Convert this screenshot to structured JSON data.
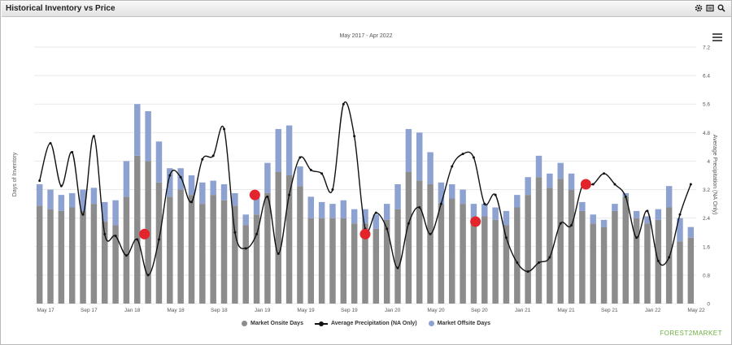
{
  "header": {
    "title": "Historical Inventory vs Price"
  },
  "icons": {
    "settings": "gear-icon",
    "export": "export-icon",
    "zoom": "magnifier-icon",
    "menu": "hamburger-menu-icon"
  },
  "brand": "FOREST2MARKET",
  "colors": {
    "onsite": "#8c8c8c",
    "offsite": "#8ea2d2",
    "line": "#111111",
    "marker": "#e3242b",
    "grid": "#e9e9e9"
  },
  "chart_data": {
    "type": "bar",
    "title": "May 2017 - Apr 2022",
    "ylabel": "Days of Inventory",
    "y2label": "Average Precipitation (NA Only)",
    "ylim": [
      0,
      7.2
    ],
    "y_ticks": [
      "0",
      "0.8",
      "1.6",
      "2.4",
      "3.2",
      "4",
      "4.8",
      "5.6",
      "6.4",
      "7.2"
    ],
    "x_tick_labels": [
      "May 17",
      "Sep 17",
      "Jan 18",
      "May 18",
      "Sep 18",
      "Jan 19",
      "May 19",
      "Sep 19",
      "Jan 20",
      "May 20",
      "Sep 20",
      "Jan 21",
      "May 21",
      "Sep 21",
      "Jan 22",
      "May 22"
    ],
    "legend": [
      "Market Onsite Days",
      "Average Precipitation (NA Only)",
      "Market Offsite Days"
    ],
    "grid": true,
    "series": [
      {
        "name": "Market Onsite Days",
        "values": [
          2.75,
          2.65,
          2.6,
          2.7,
          2.6,
          2.8,
          2.3,
          2.2,
          3.0,
          4.15,
          4.0,
          3.4,
          3.0,
          3.2,
          3.05,
          2.8,
          3.05,
          2.9,
          2.75,
          2.2,
          2.5,
          3.1,
          3.7,
          3.6,
          3.3,
          2.4,
          2.4,
          2.4,
          2.4,
          2.25,
          2.25,
          2.1,
          2.35,
          2.65,
          3.7,
          3.45,
          3.35,
          2.8,
          2.95,
          2.8,
          2.4,
          2.45,
          2.35,
          2.2,
          2.7,
          3.05,
          3.55,
          3.25,
          3.5,
          3.2,
          2.6,
          2.25,
          2.15,
          2.6,
          3.0,
          2.4,
          2.25,
          2.35,
          2.7,
          1.75,
          1.85
        ]
      },
      {
        "name": "Market Offsite Days",
        "values": [
          0.6,
          0.55,
          0.45,
          0.4,
          0.6,
          0.45,
          0.55,
          0.7,
          1.0,
          1.45,
          1.4,
          1.15,
          0.8,
          0.6,
          0.55,
          0.6,
          0.4,
          0.45,
          0.35,
          0.3,
          0.5,
          0.85,
          1.2,
          1.4,
          0.55,
          0.6,
          0.45,
          0.4,
          0.5,
          0.4,
          0.4,
          0.4,
          0.45,
          0.7,
          1.2,
          1.35,
          0.9,
          0.6,
          0.4,
          0.4,
          0.4,
          0.35,
          0.35,
          0.4,
          0.35,
          0.5,
          0.6,
          0.4,
          0.45,
          0.45,
          0.25,
          0.25,
          0.2,
          0.2,
          0.1,
          0.2,
          0.2,
          0.3,
          0.6,
          0.65,
          0.3
        ]
      },
      {
        "name": "Average Precipitation (NA Only)",
        "values": [
          3.45,
          4.5,
          3.3,
          4.25,
          2.5,
          4.7,
          1.95,
          1.9,
          1.35,
          1.8,
          0.8,
          1.8,
          3.6,
          3.55,
          2.85,
          4.05,
          4.15,
          4.9,
          2.0,
          1.55,
          1.95,
          3.0,
          1.4,
          3.05,
          4.1,
          3.75,
          3.65,
          3.2,
          5.6,
          4.7,
          2.1,
          2.55,
          2.1,
          1.0,
          2.25,
          2.7,
          1.95,
          2.8,
          3.85,
          4.2,
          4.1,
          2.8,
          3.05,
          1.85,
          1.15,
          0.9,
          1.15,
          1.3,
          2.25,
          2.2,
          3.3,
          3.35,
          3.65,
          3.35,
          3.0,
          1.85,
          2.6,
          1.2,
          1.3,
          2.5,
          3.35
        ]
      }
    ],
    "markers": [
      {
        "index": 7,
        "value": 1.95
      },
      {
        "index": 15,
        "value": 3.05
      },
      {
        "index": 23,
        "value": 1.95
      },
      {
        "index": 31,
        "value": 2.3
      },
      {
        "index": 39,
        "value": 3.35
      }
    ]
  }
}
